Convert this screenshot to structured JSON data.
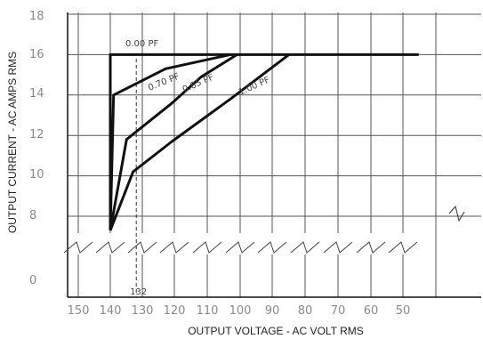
{
  "chart_data": {
    "type": "line",
    "title": "",
    "xlabel": "OUTPUT VOLTAGE - AC VOLT RMS",
    "ylabel": "OUTPUT CURRENT - AC AMPS RMS",
    "x_reversed": true,
    "x_ticks": [
      "150",
      "140",
      "130",
      "120",
      "110",
      "100",
      "90",
      "80",
      "70",
      "60",
      "50"
    ],
    "y_ticks": [
      "18",
      "16",
      "14",
      "12",
      "10",
      "8",
      "0"
    ],
    "y_break_between": [
      0,
      8
    ],
    "xlim": [
      150,
      45
    ],
    "ylim_upper": [
      8,
      18
    ],
    "marker_line": {
      "x": 132,
      "label": "132"
    },
    "series": [
      {
        "name": "0.00 PF",
        "points": [
          [
            140,
            7.3
          ],
          [
            140,
            16
          ],
          [
            45,
            16
          ]
        ]
      },
      {
        "name": "0.70 PF",
        "points": [
          [
            140,
            7.3
          ],
          [
            139,
            14
          ],
          [
            123,
            15.3
          ],
          [
            103,
            16
          ]
        ]
      },
      {
        "name": "0.85 PF",
        "points": [
          [
            140,
            7.3
          ],
          [
            135,
            11.8
          ],
          [
            121,
            13.6
          ],
          [
            112,
            14.9
          ],
          [
            101,
            16
          ]
        ]
      },
      {
        "name": "1.00 PF",
        "points": [
          [
            140,
            7.3
          ],
          [
            133,
            10.2
          ],
          [
            121,
            11.7
          ],
          [
            103,
            13.8
          ],
          [
            85,
            16
          ]
        ]
      }
    ]
  }
}
